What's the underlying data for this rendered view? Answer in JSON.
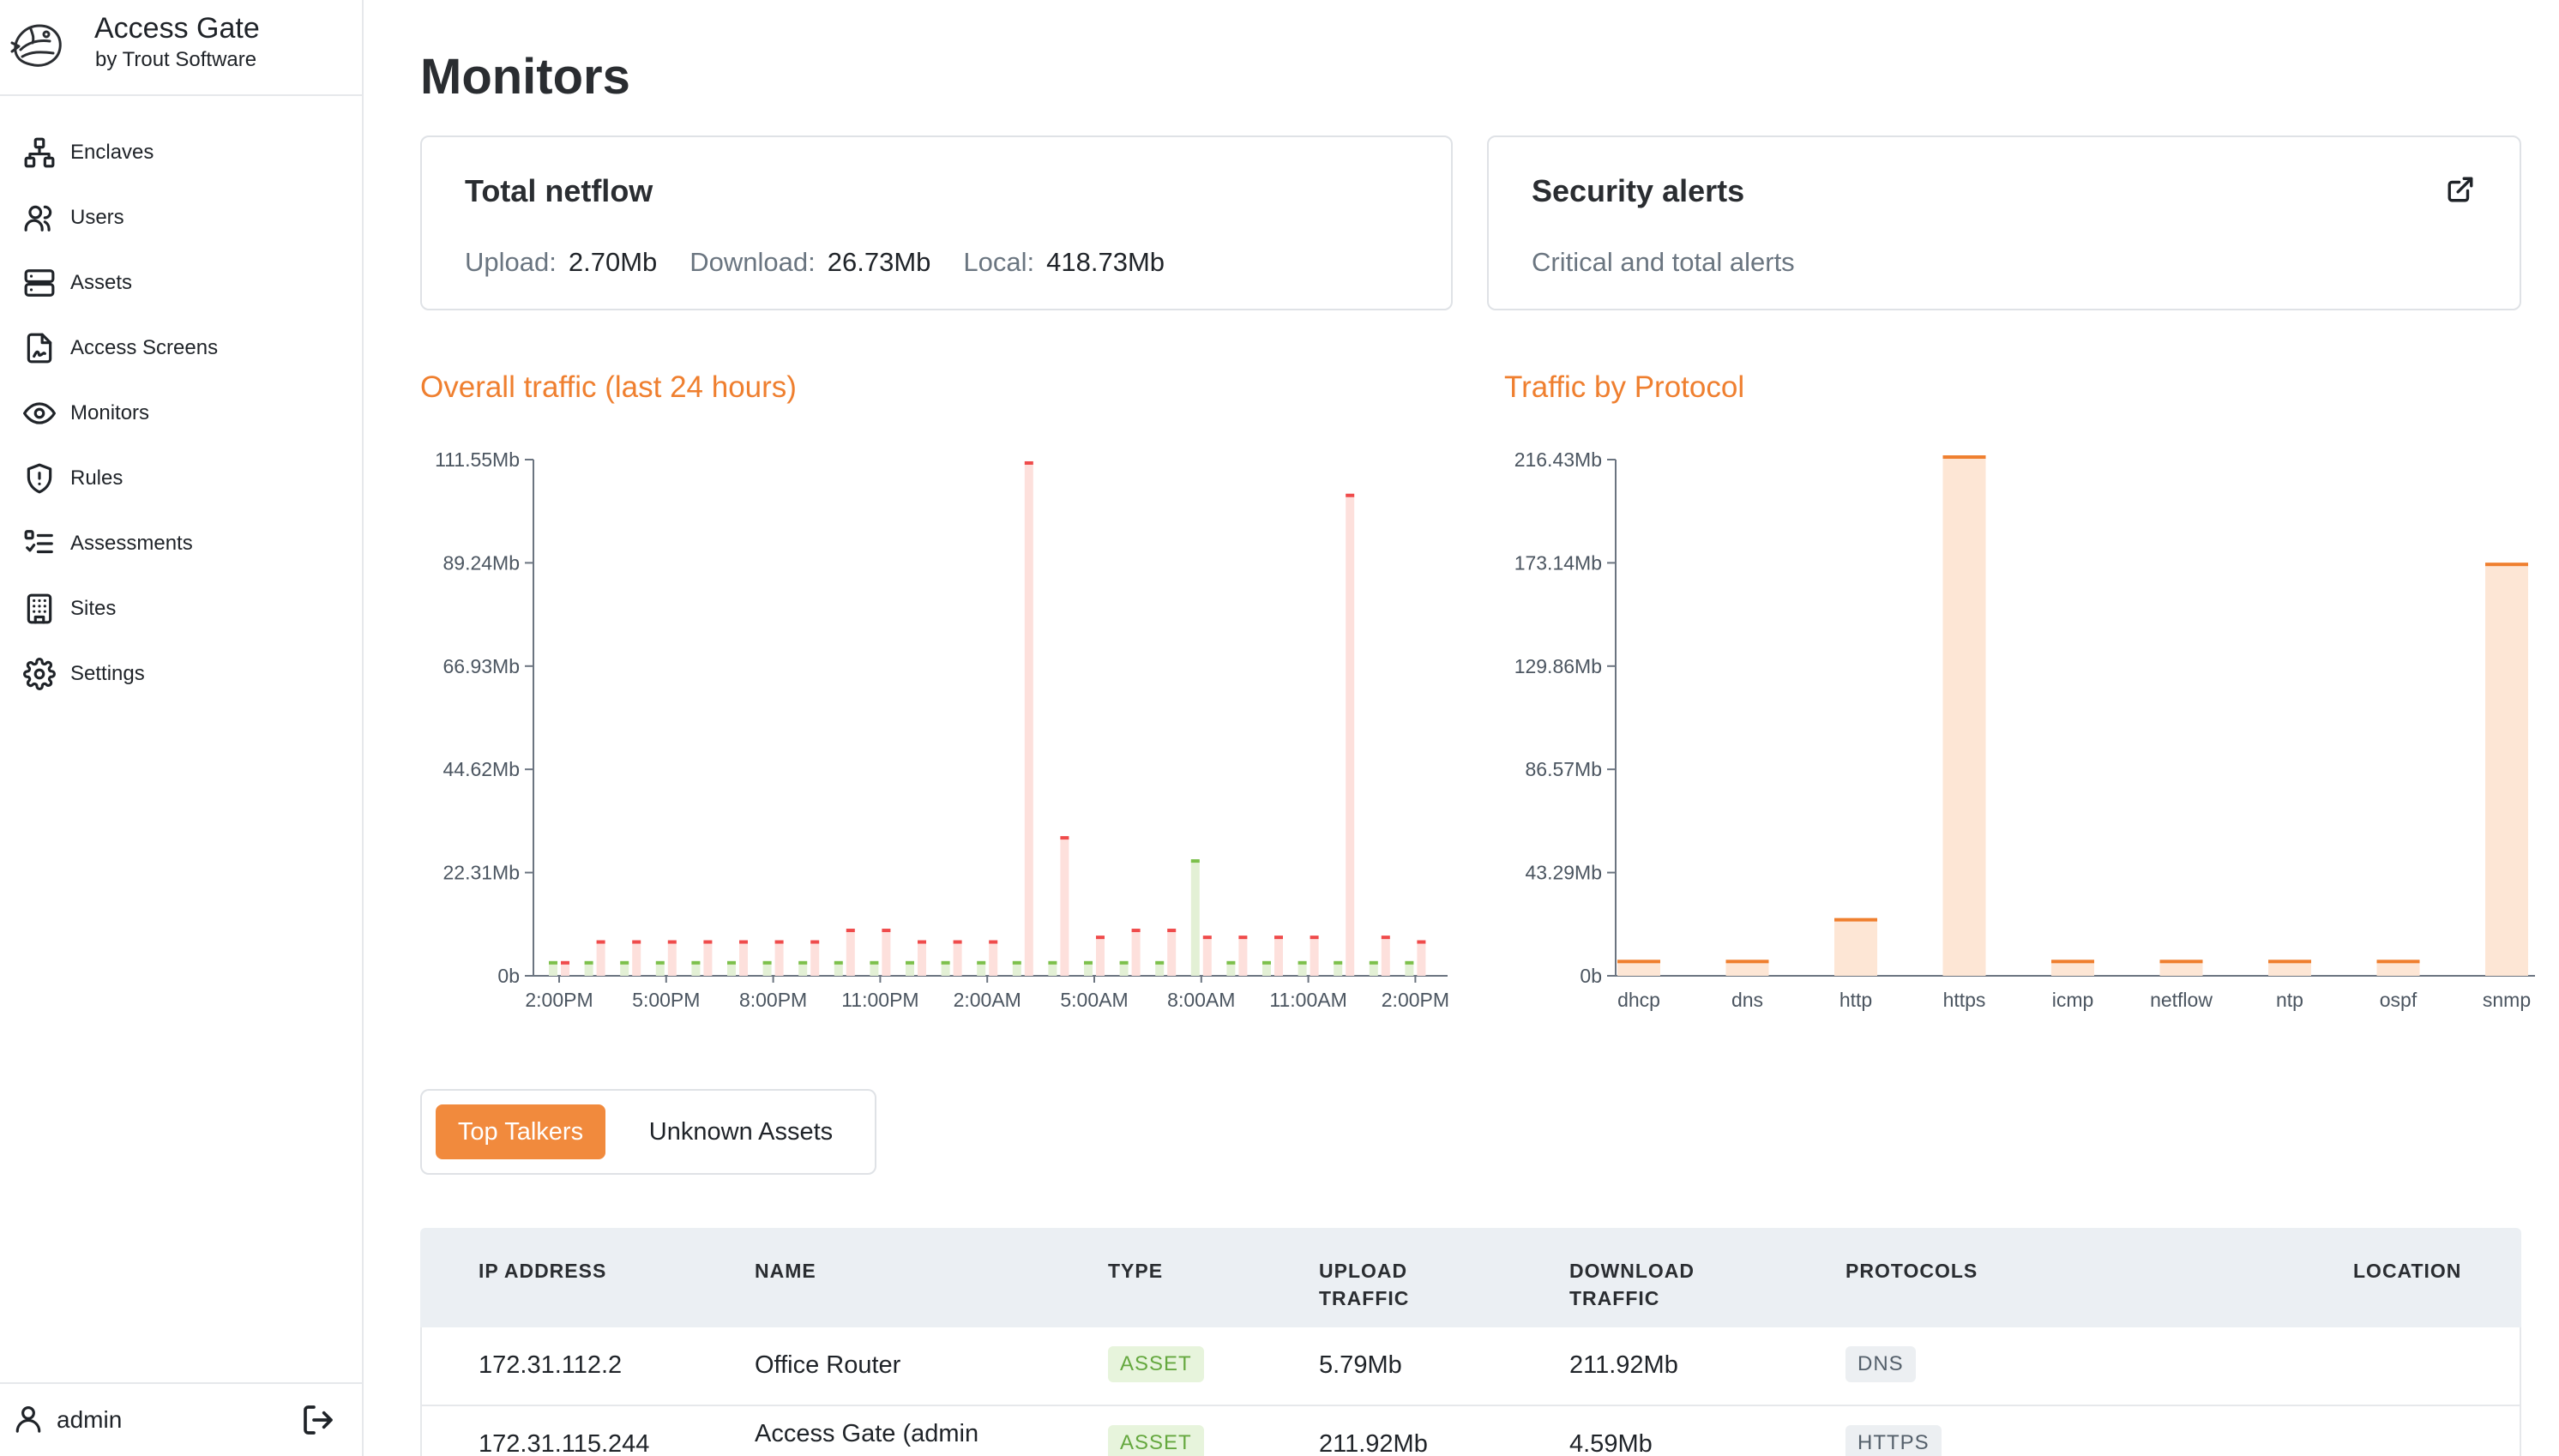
{
  "brand": {
    "name": "Access Gate",
    "subtitle": "by Trout Software"
  },
  "nav": [
    {
      "id": "enclaves",
      "label": "Enclaves",
      "icon": "network-icon"
    },
    {
      "id": "users",
      "label": "Users",
      "icon": "users-icon"
    },
    {
      "id": "assets",
      "label": "Assets",
      "icon": "server-icon"
    },
    {
      "id": "access-screens",
      "label": "Access Screens",
      "icon": "file-signature-icon"
    },
    {
      "id": "monitors",
      "label": "Monitors",
      "icon": "eye-icon"
    },
    {
      "id": "rules",
      "label": "Rules",
      "icon": "shield-alert-icon"
    },
    {
      "id": "assessments",
      "label": "Assessments",
      "icon": "checklist-icon"
    },
    {
      "id": "sites",
      "label": "Sites",
      "icon": "building-icon"
    },
    {
      "id": "settings",
      "label": "Settings",
      "icon": "gear-icon"
    }
  ],
  "user": {
    "name": "admin"
  },
  "page": {
    "title": "Monitors"
  },
  "netflow": {
    "title": "Total netflow",
    "upload_label": "Upload:",
    "upload_value": "2.70Mb",
    "download_label": "Download:",
    "download_value": "26.73Mb",
    "local_label": "Local:",
    "local_value": "418.73Mb"
  },
  "alerts": {
    "title": "Security alerts",
    "subtitle": "Critical and total alerts"
  },
  "colors": {
    "accent": "#ef7f2f",
    "download_bar": "#fde0dc",
    "download_cap": "#ef4b4b",
    "upload_bar": "#e3f0d5",
    "upload_cap": "#7cc04b",
    "protocol_bar": "#fde6d5",
    "protocol_cap": "#ef7f2f"
  },
  "chart_data": [
    {
      "type": "bar",
      "title": "Overall traffic (last 24 hours)",
      "ylim": [
        0,
        111.55
      ],
      "y_unit": "Mb",
      "y_ticks": [
        "0b",
        "22.31Mb",
        "44.62Mb",
        "66.93Mb",
        "89.24Mb",
        "111.55Mb"
      ],
      "x_tick_labels": [
        "2:00PM",
        "5:00PM",
        "8:00PM",
        "11:00PM",
        "2:00AM",
        "5:00AM",
        "8:00AM",
        "11:00AM",
        "2:00PM"
      ],
      "series": [
        {
          "name": "upload",
          "values": [
            3,
            3,
            3,
            3,
            3,
            3,
            3,
            3,
            3,
            3,
            3,
            3,
            3,
            3,
            3,
            3,
            3,
            3,
            25,
            3,
            3,
            3,
            3,
            3,
            3
          ]
        },
        {
          "name": "download",
          "values": [
            3,
            7.5,
            7.5,
            7.5,
            7.5,
            7.5,
            7.5,
            7.5,
            10,
            10,
            7.5,
            7.5,
            7.5,
            111,
            30,
            8.5,
            10,
            10,
            8.5,
            8.5,
            8.5,
            8.5,
            104,
            8.5,
            7.5
          ]
        }
      ]
    },
    {
      "type": "bar",
      "title": "Traffic by Protocol",
      "ylim": [
        0,
        216.43
      ],
      "y_unit": "Mb",
      "y_ticks": [
        "0b",
        "43.29Mb",
        "86.57Mb",
        "129.86Mb",
        "173.14Mb",
        "216.43Mb"
      ],
      "categories": [
        "dhcp",
        "dns",
        "http",
        "https",
        "icmp",
        "netflow",
        "ntp",
        "ospf",
        "snmp"
      ],
      "values": [
        6,
        6,
        23.5,
        217.5,
        6,
        6,
        6,
        6,
        172.5
      ]
    }
  ],
  "tabs": [
    {
      "label": "Top Talkers",
      "active": true
    },
    {
      "label": "Unknown Assets",
      "active": false
    }
  ],
  "table": {
    "headers": [
      "IP ADDRESS",
      "NAME",
      "TYPE",
      "UPLOAD TRAFFIC",
      "DOWNLOAD TRAFFIC",
      "PROTOCOLS",
      "LOCATION"
    ],
    "header_lines": [
      [
        "IP ADDRESS"
      ],
      [
        "NAME"
      ],
      [
        "TYPE"
      ],
      [
        "UPLOAD",
        "TRAFFIC"
      ],
      [
        "DOWNLOAD",
        "TRAFFIC"
      ],
      [
        "PROTOCOLS"
      ],
      [
        "LOCATION"
      ]
    ],
    "rows": [
      {
        "ip": "172.31.112.2",
        "name": "Office Router",
        "type": "ASSET",
        "upload": "5.79Mb",
        "download": "211.92Mb",
        "protocols": "DNS",
        "location": ""
      },
      {
        "ip": "172.31.115.244",
        "name": "Access Gate (admin",
        "type": "ASSET",
        "upload": "211.92Mb",
        "download": "4.59Mb",
        "protocols": "HTTPS",
        "location": ""
      }
    ]
  }
}
